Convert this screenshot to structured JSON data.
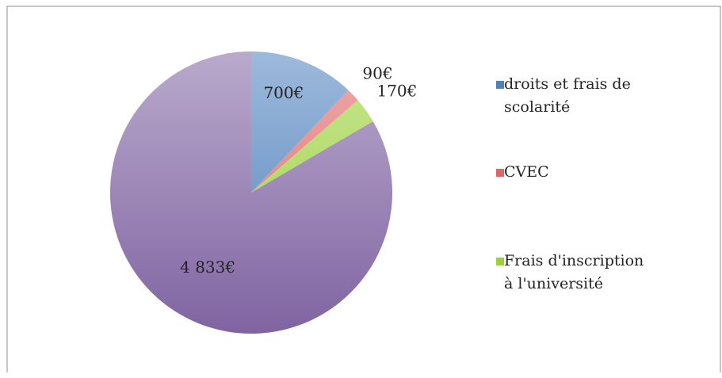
{
  "chart_data": {
    "type": "pie",
    "categories": [
      "droits et frais de scolarité",
      "CVEC",
      "Frais d'inscription à l'université",
      null
    ],
    "values": [
      700,
      90,
      170,
      4833
    ],
    "value_labels": [
      "700€",
      "90€",
      "170€",
      "4 833€"
    ],
    "colors": [
      "#4f81bd",
      "#e06666",
      "#9bd13a",
      "#8064a2"
    ],
    "legend": "right"
  }
}
